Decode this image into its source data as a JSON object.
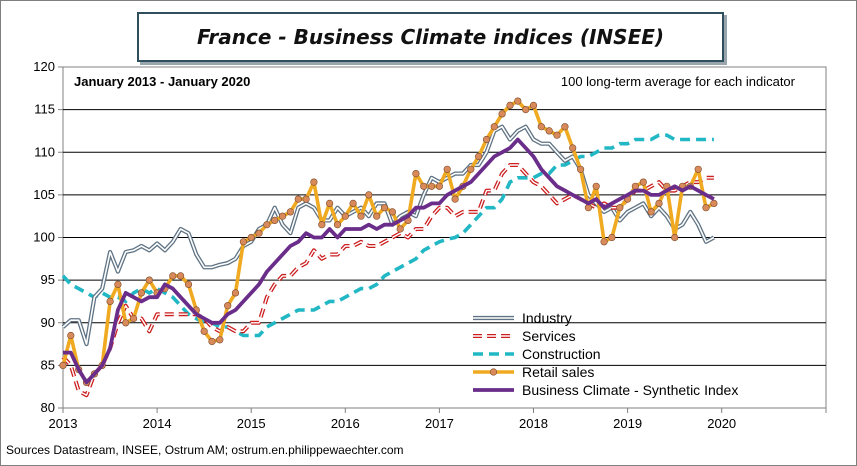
{
  "header": {
    "title": "France - Business Climate indices (INSEE)"
  },
  "annotations": {
    "period": "January 2013 - January 2020",
    "note": "100 long-term average for each indicator"
  },
  "source": "Sources Datastream, INSEE, Ostrum AM; ostrum.en.philippewaechter.com",
  "chart_data": {
    "type": "line",
    "ylim": [
      80,
      120
    ],
    "yticks": [
      "80",
      "85",
      "90",
      "95",
      "100",
      "105",
      "110",
      "115",
      "120"
    ],
    "yticks_values": [
      80,
      85,
      90,
      95,
      100,
      105,
      110,
      115,
      120
    ],
    "xtick_labels": [
      "2013",
      "2014",
      "2015",
      "2016",
      "2017",
      "2018",
      "2019",
      "2020"
    ],
    "x_start": "2013-01",
    "x_end": "2020-01",
    "grid": true,
    "legend_position": "bottom-center",
    "series": [
      {
        "name": "Industry",
        "color": "#5f7384",
        "style": "double",
        "values": [
          89.5,
          90.3,
          90.3,
          87.5,
          93.0,
          94.0,
          98.3,
          96.0,
          98.3,
          98.5,
          99.0,
          98.5,
          99.3,
          98.5,
          99.5,
          101.0,
          100.5,
          98.0,
          96.5,
          96.5,
          96.8,
          97.0,
          97.5,
          99.0,
          99.5,
          101.0,
          101.5,
          103.5,
          101.5,
          100.5,
          103.5,
          104.0,
          103.5,
          102.0,
          102.0,
          103.5,
          102.5,
          103.0,
          103.5,
          102.5,
          104.0,
          104.0,
          101.5,
          102.5,
          103.0,
          102.5,
          105.0,
          107.0,
          106.5,
          107.0,
          107.5,
          107.5,
          108.5,
          108.5,
          110.0,
          112.5,
          113.0,
          111.5,
          112.5,
          113.0,
          111.5,
          111.0,
          111.0,
          110.0,
          109.0,
          109.5,
          108.0,
          105.0,
          104.0,
          103.0,
          103.5,
          102.0,
          103.0,
          103.5,
          104.0,
          102.5,
          103.5,
          102.5,
          101.0,
          101.5,
          103.0,
          101.5,
          99.5,
          100.0
        ]
      },
      {
        "name": "Services",
        "color": "#cc1f1f",
        "style": "dash-double",
        "values": [
          86.0,
          85.0,
          82.0,
          81.5,
          84.0,
          85.0,
          87.0,
          90.0,
          92.0,
          90.5,
          90.5,
          89.0,
          91.0,
          91.0,
          91.0,
          91.0,
          91.0,
          91.0,
          90.5,
          89.5,
          89.0,
          89.5,
          89.0,
          89.0,
          90.0,
          90.0,
          93.0,
          94.5,
          95.5,
          95.5,
          96.5,
          97.0,
          98.5,
          97.5,
          98.0,
          98.0,
          99.0,
          99.0,
          99.5,
          99.0,
          99.0,
          99.5,
          100.0,
          100.5,
          100.0,
          101.0,
          101.0,
          102.5,
          103.5,
          103.5,
          102.5,
          103.0,
          103.0,
          103.0,
          105.5,
          105.5,
          107.5,
          108.5,
          108.5,
          107.5,
          106.5,
          106.0,
          105.0,
          104.0,
          104.5,
          105.0,
          104.5,
          104.0,
          103.5,
          104.0,
          103.5,
          103.5,
          104.5,
          105.5,
          105.5,
          106.0,
          106.5,
          105.5,
          105.5,
          106.0,
          106.5,
          106.5,
          107.0,
          107.0
        ]
      },
      {
        "name": "Construction",
        "color": "#22b7c4",
        "style": "dash-thick",
        "values": [
          95.5,
          94.5,
          94.0,
          93.5,
          93.0,
          93.5,
          93.0,
          93.0,
          92.5,
          93.5,
          94.0,
          93.5,
          94.0,
          93.5,
          93.0,
          92.0,
          91.0,
          90.5,
          90.0,
          90.0,
          89.5,
          89.5,
          89.0,
          88.5,
          88.5,
          88.5,
          89.5,
          90.0,
          90.5,
          91.0,
          91.5,
          91.5,
          91.5,
          92.0,
          92.5,
          92.5,
          93.0,
          93.5,
          94.0,
          94.0,
          94.5,
          95.5,
          96.0,
          96.5,
          97.0,
          97.5,
          98.5,
          99.0,
          99.5,
          99.8,
          100.0,
          100.5,
          101.5,
          102.5,
          103.5,
          103.5,
          104.5,
          106.5,
          107.0,
          107.0,
          107.0,
          107.5,
          107.5,
          108.5,
          108.5,
          109.0,
          109.5,
          109.5,
          110.0,
          110.5,
          110.5,
          111.0,
          111.0,
          111.5,
          111.5,
          111.5,
          112.0,
          112.0,
          111.5,
          111.5,
          111.5,
          111.5,
          111.5,
          111.5
        ]
      },
      {
        "name": "Retail sales",
        "color": "#f0aa22",
        "style": "marker",
        "values": [
          85.0,
          88.5,
          84.5,
          83.0,
          84.0,
          85.0,
          92.5,
          94.5,
          90.0,
          90.5,
          93.5,
          95.0,
          93.5,
          94.0,
          95.5,
          95.5,
          94.5,
          91.5,
          89.0,
          87.8,
          88.0,
          92.0,
          93.5,
          99.5,
          100.0,
          100.5,
          101.5,
          102.0,
          102.5,
          103.0,
          104.5,
          104.5,
          106.5,
          101.5,
          104.0,
          101.5,
          102.5,
          104.0,
          102.5,
          105.0,
          102.5,
          103.5,
          103.0,
          101.0,
          102.0,
          107.5,
          106.0,
          106.0,
          106.0,
          108.0,
          104.5,
          106.0,
          108.0,
          109.5,
          111.5,
          113.0,
          114.5,
          115.5,
          116.0,
          115.0,
          115.5,
          113.0,
          112.5,
          112.0,
          113.0,
          110.5,
          108.0,
          103.5,
          106.0,
          99.5,
          100.0,
          103.5,
          104.5,
          106.0,
          106.5,
          103.0,
          104.0,
          106.0,
          100.0,
          106.0,
          106.0,
          108.0,
          103.5,
          104.0
        ]
      },
      {
        "name": "Business Climate - Synthetic Index",
        "color": "#6a2d8a",
        "style": "thick",
        "values": [
          86.5,
          86.5,
          84.5,
          83.0,
          84.0,
          85.0,
          87.0,
          91.5,
          93.5,
          93.0,
          92.5,
          93.0,
          93.0,
          94.5,
          94.0,
          93.0,
          92.0,
          91.0,
          90.5,
          90.0,
          90.0,
          91.0,
          91.5,
          92.5,
          93.5,
          94.5,
          96.0,
          97.0,
          98.0,
          99.0,
          99.5,
          100.5,
          100.0,
          100.0,
          101.0,
          100.0,
          101.0,
          101.0,
          101.0,
          101.5,
          101.0,
          101.5,
          101.5,
          102.0,
          102.5,
          103.5,
          103.5,
          104.0,
          104.0,
          105.0,
          105.5,
          106.0,
          106.5,
          107.5,
          108.5,
          109.5,
          110.0,
          110.5,
          111.5,
          110.5,
          109.5,
          108.0,
          107.0,
          106.0,
          105.5,
          105.0,
          104.5,
          104.0,
          104.5,
          103.5,
          104.0,
          104.5,
          105.0,
          105.5,
          105.5,
          105.0,
          105.0,
          105.5,
          106.0,
          105.5,
          106.0,
          105.5,
          105.0,
          104.5
        ]
      }
    ]
  }
}
